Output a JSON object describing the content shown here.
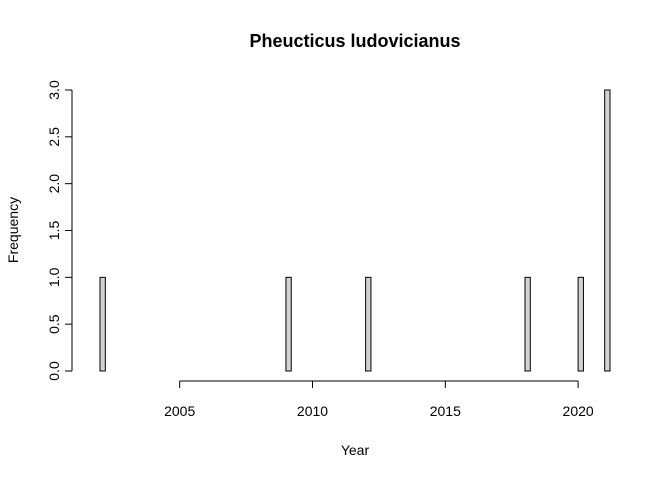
{
  "chart_data": {
    "type": "bar",
    "title": "Pheucticus ludovicianus",
    "xlabel": "Year",
    "ylabel": "Frequency",
    "bar_color": "#d3d3d3",
    "xlim": [
      2002,
      2021
    ],
    "ylim": [
      0,
      3
    ],
    "x_ticks": [
      2005,
      2010,
      2015,
      2020
    ],
    "y_ticks": [
      0,
      0.5,
      1,
      1.5,
      2,
      2.5,
      3
    ],
    "y_tick_labels": [
      "0.0",
      "0.5",
      "1.0",
      "1.5",
      "2.0",
      "2.5",
      "3.0"
    ],
    "bin_width": 0.2,
    "bins": [
      {
        "year": 2002,
        "count": 1
      },
      {
        "year": 2009,
        "count": 1
      },
      {
        "year": 2012,
        "count": 1
      },
      {
        "year": 2018,
        "count": 1
      },
      {
        "year": 2020,
        "count": 1
      },
      {
        "year": 2021,
        "count": 3
      }
    ]
  }
}
